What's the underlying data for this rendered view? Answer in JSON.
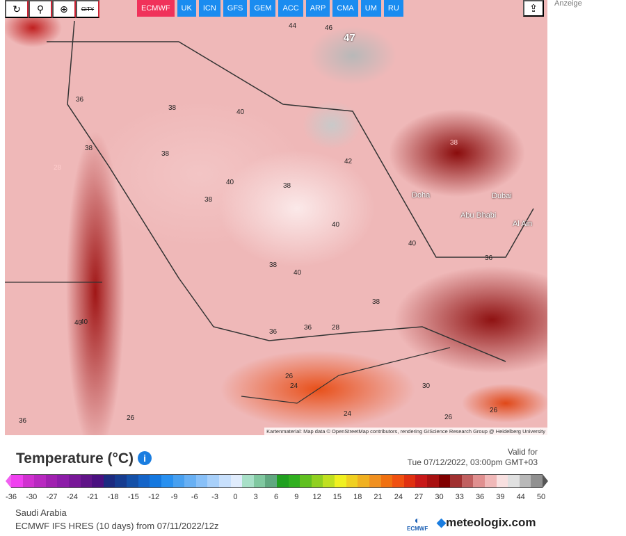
{
  "toolbar": {
    "buttons": [
      {
        "name": "refresh",
        "glyph": "↻"
      },
      {
        "name": "location",
        "glyph": "⚲"
      },
      {
        "name": "zoom",
        "glyph": "⊕"
      },
      {
        "name": "city",
        "glyph": "CITY"
      }
    ],
    "models": [
      "ECMWF",
      "UK",
      "ICN",
      "GFS",
      "GEM",
      "ACC",
      "ARP",
      "CMA",
      "UM",
      "RU"
    ],
    "active_model": "ECMWF",
    "share_glyph": "⇪"
  },
  "ad_label": "Anzeige",
  "map": {
    "attribution": "Kartenmaterial: Map data © OpenStreetMap contributors, rendering GIScience Research Group @ Heidelberg University",
    "cities": [
      "Doha",
      "Dubai",
      "Abu Dhabi",
      "Al Ain"
    ],
    "max_label": "47",
    "values": [
      "44",
      "46",
      "38",
      "36",
      "38",
      "40",
      "38",
      "40",
      "38",
      "42",
      "40",
      "38",
      "40",
      "38",
      "40",
      "28",
      "38",
      "36",
      "40",
      "36",
      "28",
      "26",
      "24",
      "24",
      "26",
      "30",
      "36",
      "26",
      "26",
      "38",
      "40",
      "36"
    ]
  },
  "legend": {
    "title": "Temperature (°C)",
    "info_glyph": "i",
    "valid_label": "Valid for",
    "valid_time": "Tue 07/12/2022, 03:00pm GMT+03",
    "ticks": [
      "-36",
      "-30",
      "-27",
      "-24",
      "-21",
      "-18",
      "-15",
      "-12",
      "-9",
      "-6",
      "-3",
      "0",
      "3",
      "6",
      "9",
      "12",
      "15",
      "18",
      "21",
      "24",
      "27",
      "30",
      "33",
      "36",
      "39",
      "44",
      "50"
    ],
    "colors": [
      "#f040f0",
      "#d030d0",
      "#b828c0",
      "#a020b0",
      "#8c1ca8",
      "#781898",
      "#601488",
      "#4a1080",
      "#1c2a80",
      "#163c90",
      "#1450a8",
      "#1464c8",
      "#1478e0",
      "#2890f0",
      "#48a0f0",
      "#68b0f4",
      "#88c0f8",
      "#a8d0fa",
      "#c8e0fc",
      "#e0ecfc",
      "#a8e0c8",
      "#80c8a0",
      "#60a880",
      "#20a020",
      "#30b020",
      "#60c020",
      "#90d020",
      "#c0e020",
      "#f0f020",
      "#f0d020",
      "#f0b020",
      "#f09020",
      "#f07010",
      "#f05010",
      "#e03010",
      "#c81818",
      "#a81010",
      "#800000",
      "#a03030",
      "#c06060",
      "#e09090",
      "#f0b8b8",
      "#f8e0e0",
      "#e0e0e0",
      "#b8b8b8",
      "#909090"
    ]
  },
  "footer": {
    "region": "Saudi Arabia",
    "model_run": "ECMWF IFS HRES (10 days) from 07/11/2022/12z",
    "ecmwf_label": "ECMWF",
    "site": "meteologix.com"
  }
}
